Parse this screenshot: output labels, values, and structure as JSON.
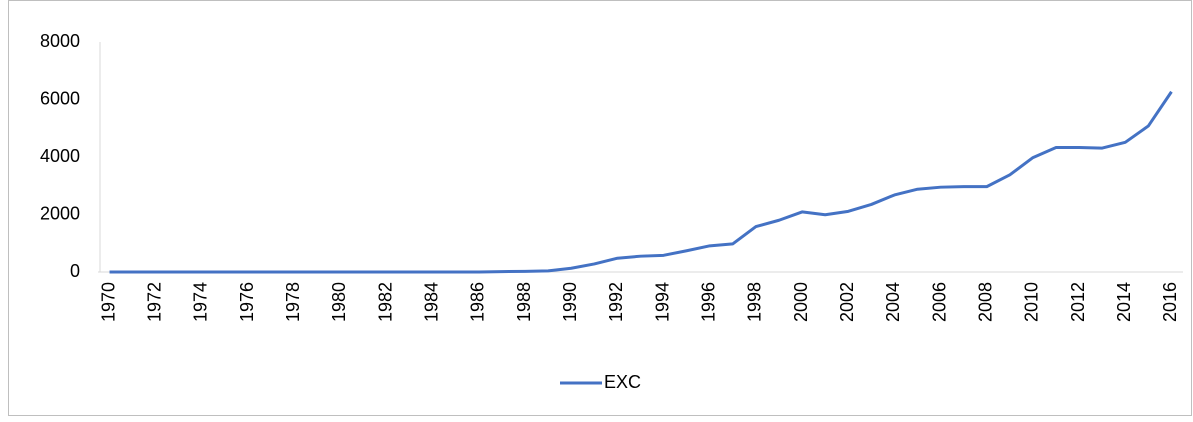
{
  "chart_data": {
    "type": "line",
    "categories": [
      "1970",
      null,
      "1972",
      null,
      "1974",
      null,
      "1976",
      null,
      "1978",
      null,
      "1980",
      null,
      "1982",
      null,
      "1984",
      null,
      "1986",
      null,
      "1988",
      null,
      "1990",
      null,
      "1992",
      null,
      "1994",
      null,
      "1996",
      null,
      "1998",
      null,
      "2000",
      null,
      "2002",
      null,
      "2004",
      null,
      "2006",
      null,
      "2008",
      null,
      "2010",
      null,
      "2012",
      null,
      "2014",
      null,
      "2016"
    ],
    "series": [
      {
        "name": "EXC",
        "color": "#4472c4",
        "values": [
          0,
          0,
          0,
          0,
          0,
          0,
          0,
          0,
          0,
          0,
          0,
          0,
          0,
          0,
          0,
          0,
          2,
          15,
          20,
          40,
          130,
          280,
          480,
          550,
          580,
          740,
          910,
          980,
          1580,
          1800,
          2090,
          1990,
          2110,
          2350,
          2680,
          2880,
          2950,
          2970,
          2970,
          3380,
          3980,
          4330,
          4330,
          4310,
          4510,
          5080,
          6270
        ]
      }
    ],
    "ylim": [
      0,
      8000
    ],
    "yticks": [
      0,
      2000,
      4000,
      6000,
      8000
    ],
    "legend": "bottom"
  }
}
